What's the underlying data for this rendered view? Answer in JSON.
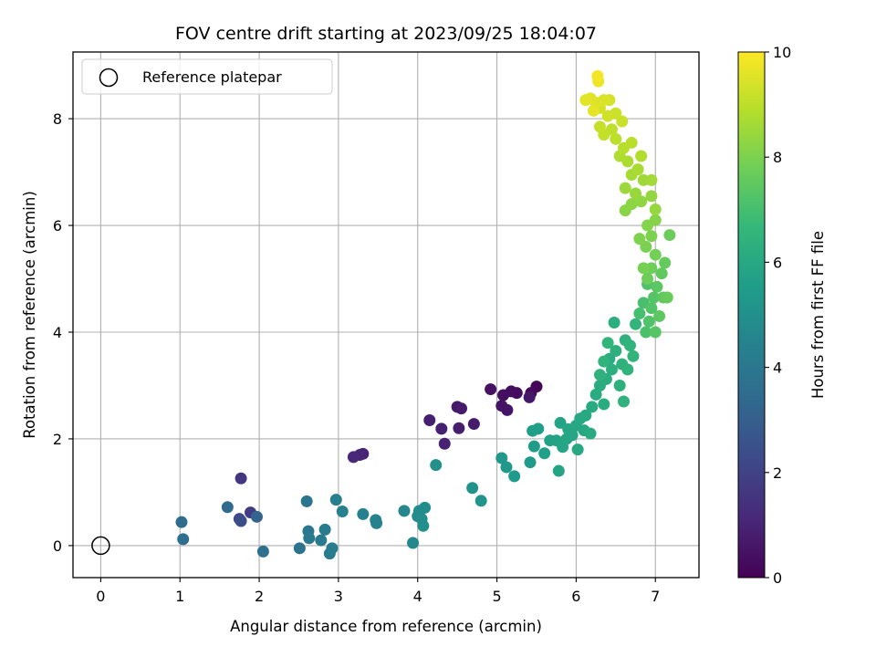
{
  "chart_data": {
    "type": "scatter",
    "title": "FOV centre drift starting at 2023/09/25 18:04:07",
    "xlabel": "Angular distance from reference (arcmin)",
    "ylabel": "Rotation from reference (arcmin)",
    "xlim": [
      -0.35,
      7.55
    ],
    "ylim": [
      -0.6,
      9.25
    ],
    "xticks": [
      0,
      1,
      2,
      3,
      4,
      5,
      6,
      7
    ],
    "yticks": [
      0,
      2,
      4,
      6,
      8
    ],
    "grid": true,
    "legend": {
      "placement": "top-left",
      "entries": [
        "Reference platepar"
      ]
    },
    "reference_point": {
      "x": 0,
      "y": 0
    },
    "colorbar": {
      "label": "Hours from first FF file",
      "range": [
        0,
        10
      ],
      "ticks": [
        0,
        2,
        4,
        6,
        8,
        10
      ],
      "colormap": "viridis"
    },
    "colormap_stops": [
      "#440154",
      "#482878",
      "#3e4989",
      "#31688e",
      "#26828e",
      "#1f9e89",
      "#35b779",
      "#6ece58",
      "#b5de2b",
      "#fde725"
    ],
    "points": [
      {
        "x": 5.5,
        "y": 2.98,
        "h": 0.1
      },
      {
        "x": 5.43,
        "y": 2.86,
        "h": 0.2
      },
      {
        "x": 5.25,
        "y": 2.86,
        "h": 0.3
      },
      {
        "x": 5.18,
        "y": 2.89,
        "h": 0.35
      },
      {
        "x": 5.08,
        "y": 2.82,
        "h": 0.4
      },
      {
        "x": 4.92,
        "y": 2.93,
        "h": 0.45
      },
      {
        "x": 5.06,
        "y": 2.62,
        "h": 0.5
      },
      {
        "x": 5.13,
        "y": 2.54,
        "h": 0.55
      },
      {
        "x": 5.41,
        "y": 2.78,
        "h": 0.6
      },
      {
        "x": 4.5,
        "y": 2.6,
        "h": 0.65
      },
      {
        "x": 4.55,
        "y": 2.57,
        "h": 0.7
      },
      {
        "x": 4.71,
        "y": 2.28,
        "h": 0.75
      },
      {
        "x": 4.52,
        "y": 2.2,
        "h": 0.8
      },
      {
        "x": 4.15,
        "y": 2.35,
        "h": 0.85
      },
      {
        "x": 4.3,
        "y": 2.19,
        "h": 0.9
      },
      {
        "x": 4.34,
        "y": 1.91,
        "h": 0.95
      },
      {
        "x": 3.31,
        "y": 1.72,
        "h": 1.0
      },
      {
        "x": 3.27,
        "y": 1.7,
        "h": 1.05
      },
      {
        "x": 3.19,
        "y": 1.66,
        "h": 1.1
      },
      {
        "x": 1.77,
        "y": 1.26,
        "h": 1.6
      },
      {
        "x": 1.89,
        "y": 0.62,
        "h": 1.8
      },
      {
        "x": 1.75,
        "y": 0.5,
        "h": 2.2
      },
      {
        "x": 1.77,
        "y": 0.46,
        "h": 2.4
      },
      {
        "x": 1.97,
        "y": 0.54,
        "h": 3.2
      },
      {
        "x": 1.6,
        "y": 0.72,
        "h": 3.4
      },
      {
        "x": 1.02,
        "y": 0.44,
        "h": 3.5
      },
      {
        "x": 1.04,
        "y": 0.12,
        "h": 3.6
      },
      {
        "x": 2.05,
        "y": -0.11,
        "h": 3.7
      },
      {
        "x": 2.51,
        "y": -0.05,
        "h": 3.8
      },
      {
        "x": 2.6,
        "y": 0.83,
        "h": 3.9
      },
      {
        "x": 2.62,
        "y": 0.27,
        "h": 4.0
      },
      {
        "x": 2.63,
        "y": 0.14,
        "h": 4.05
      },
      {
        "x": 2.78,
        "y": 0.1,
        "h": 4.1
      },
      {
        "x": 2.83,
        "y": 0.3,
        "h": 4.15
      },
      {
        "x": 2.89,
        "y": -0.15,
        "h": 4.2
      },
      {
        "x": 2.92,
        "y": -0.05,
        "h": 4.25
      },
      {
        "x": 2.97,
        "y": 0.86,
        "h": 4.3
      },
      {
        "x": 3.05,
        "y": 0.64,
        "h": 4.35
      },
      {
        "x": 3.31,
        "y": 0.59,
        "h": 4.4
      },
      {
        "x": 3.47,
        "y": 0.48,
        "h": 4.45
      },
      {
        "x": 3.48,
        "y": 0.42,
        "h": 4.5
      },
      {
        "x": 3.83,
        "y": 0.65,
        "h": 4.6
      },
      {
        "x": 3.94,
        "y": 0.05,
        "h": 4.7
      },
      {
        "x": 4.0,
        "y": 0.55,
        "h": 4.75
      },
      {
        "x": 4.02,
        "y": 0.65,
        "h": 4.8
      },
      {
        "x": 4.05,
        "y": 0.5,
        "h": 4.85
      },
      {
        "x": 4.09,
        "y": 0.71,
        "h": 4.9
      },
      {
        "x": 4.07,
        "y": 0.37,
        "h": 4.95
      },
      {
        "x": 4.23,
        "y": 1.51,
        "h": 5.0
      },
      {
        "x": 4.69,
        "y": 1.08,
        "h": 5.1
      },
      {
        "x": 4.8,
        "y": 0.84,
        "h": 5.2
      },
      {
        "x": 5.06,
        "y": 1.64,
        "h": 5.3
      },
      {
        "x": 5.12,
        "y": 1.47,
        "h": 5.35
      },
      {
        "x": 5.22,
        "y": 1.3,
        "h": 5.4
      },
      {
        "x": 5.42,
        "y": 1.56,
        "h": 5.45
      },
      {
        "x": 5.47,
        "y": 1.86,
        "h": 5.5
      },
      {
        "x": 5.45,
        "y": 2.15,
        "h": 5.55
      },
      {
        "x": 5.52,
        "y": 2.19,
        "h": 5.6
      },
      {
        "x": 5.6,
        "y": 1.73,
        "h": 5.65
      },
      {
        "x": 5.67,
        "y": 1.97,
        "h": 5.7
      },
      {
        "x": 5.75,
        "y": 1.97,
        "h": 5.75
      },
      {
        "x": 5.78,
        "y": 1.4,
        "h": 5.8
      },
      {
        "x": 5.8,
        "y": 2.3,
        "h": 5.82
      },
      {
        "x": 5.83,
        "y": 1.85,
        "h": 5.85
      },
      {
        "x": 5.88,
        "y": 2.0,
        "h": 5.88
      },
      {
        "x": 5.9,
        "y": 2.18,
        "h": 5.9
      },
      {
        "x": 5.95,
        "y": 2.07,
        "h": 5.93
      },
      {
        "x": 6.0,
        "y": 2.25,
        "h": 5.95
      },
      {
        "x": 6.02,
        "y": 1.8,
        "h": 5.98
      },
      {
        "x": 6.05,
        "y": 2.38,
        "h": 6.0
      },
      {
        "x": 6.1,
        "y": 2.16,
        "h": 6.02
      },
      {
        "x": 6.12,
        "y": 2.44,
        "h": 6.05
      },
      {
        "x": 6.18,
        "y": 2.1,
        "h": 6.08
      },
      {
        "x": 6.2,
        "y": 2.6,
        "h": 6.1
      },
      {
        "x": 6.25,
        "y": 2.83,
        "h": 6.12
      },
      {
        "x": 6.3,
        "y": 3.0,
        "h": 6.15
      },
      {
        "x": 6.35,
        "y": 2.65,
        "h": 6.18
      },
      {
        "x": 6.38,
        "y": 3.12,
        "h": 6.2
      },
      {
        "x": 6.42,
        "y": 3.5,
        "h": 6.22
      },
      {
        "x": 6.45,
        "y": 3.3,
        "h": 6.25
      },
      {
        "x": 6.48,
        "y": 4.18,
        "h": 6.28
      },
      {
        "x": 6.5,
        "y": 3.65,
        "h": 6.3
      },
      {
        "x": 6.55,
        "y": 3.0,
        "h": 6.33
      },
      {
        "x": 6.58,
        "y": 3.4,
        "h": 6.36
      },
      {
        "x": 6.6,
        "y": 2.7,
        "h": 6.39
      },
      {
        "x": 6.62,
        "y": 3.85,
        "h": 6.42
      },
      {
        "x": 6.65,
        "y": 3.3,
        "h": 6.45
      },
      {
        "x": 6.68,
        "y": 3.75,
        "h": 6.48
      },
      {
        "x": 6.72,
        "y": 3.55,
        "h": 6.5
      },
      {
        "x": 6.75,
        "y": 4.15,
        "h": 6.55
      },
      {
        "x": 6.3,
        "y": 3.2,
        "h": 6.4
      },
      {
        "x": 6.4,
        "y": 3.8,
        "h": 6.55
      },
      {
        "x": 6.35,
        "y": 3.45,
        "h": 6.5
      },
      {
        "x": 6.8,
        "y": 4.35,
        "h": 7.0
      },
      {
        "x": 6.85,
        "y": 4.55,
        "h": 7.05
      },
      {
        "x": 6.88,
        "y": 4.0,
        "h": 7.1
      },
      {
        "x": 6.9,
        "y": 4.9,
        "h": 7.15
      },
      {
        "x": 6.92,
        "y": 4.2,
        "h": 7.2
      },
      {
        "x": 6.95,
        "y": 4.45,
        "h": 7.25
      },
      {
        "x": 6.98,
        "y": 4.65,
        "h": 7.3
      },
      {
        "x": 7.0,
        "y": 4.0,
        "h": 7.35
      },
      {
        "x": 7.02,
        "y": 4.85,
        "h": 7.4
      },
      {
        "x": 7.05,
        "y": 4.3,
        "h": 7.45
      },
      {
        "x": 7.1,
        "y": 4.65,
        "h": 7.5
      },
      {
        "x": 7.08,
        "y": 5.1,
        "h": 7.55
      },
      {
        "x": 7.12,
        "y": 5.3,
        "h": 7.6
      },
      {
        "x": 7.15,
        "y": 4.65,
        "h": 7.65
      },
      {
        "x": 7.18,
        "y": 5.82,
        "h": 7.7
      },
      {
        "x": 6.9,
        "y": 5.0,
        "h": 7.75
      },
      {
        "x": 6.95,
        "y": 5.2,
        "h": 7.8
      },
      {
        "x": 7.0,
        "y": 5.45,
        "h": 7.85
      },
      {
        "x": 6.85,
        "y": 5.2,
        "h": 7.9
      },
      {
        "x": 6.88,
        "y": 5.6,
        "h": 7.95
      },
      {
        "x": 6.95,
        "y": 5.8,
        "h": 8.0
      },
      {
        "x": 6.8,
        "y": 5.75,
        "h": 8.05
      },
      {
        "x": 6.9,
        "y": 6.0,
        "h": 8.1
      },
      {
        "x": 7.0,
        "y": 6.1,
        "h": 8.15
      },
      {
        "x": 6.62,
        "y": 6.28,
        "h": 8.2
      },
      {
        "x": 6.7,
        "y": 6.4,
        "h": 8.25
      },
      {
        "x": 6.82,
        "y": 6.45,
        "h": 8.3
      },
      {
        "x": 6.95,
        "y": 6.55,
        "h": 8.35
      },
      {
        "x": 7.0,
        "y": 6.3,
        "h": 8.4
      },
      {
        "x": 6.75,
        "y": 6.6,
        "h": 8.45
      },
      {
        "x": 6.62,
        "y": 6.7,
        "h": 8.5
      },
      {
        "x": 6.85,
        "y": 6.85,
        "h": 8.55
      },
      {
        "x": 6.95,
        "y": 6.85,
        "h": 8.6
      },
      {
        "x": 6.7,
        "y": 6.95,
        "h": 8.65
      },
      {
        "x": 6.78,
        "y": 7.05,
        "h": 8.7
      },
      {
        "x": 6.65,
        "y": 7.2,
        "h": 8.75
      },
      {
        "x": 6.55,
        "y": 7.3,
        "h": 8.8
      },
      {
        "x": 6.82,
        "y": 7.3,
        "h": 8.85
      },
      {
        "x": 6.6,
        "y": 7.45,
        "h": 8.9
      },
      {
        "x": 6.7,
        "y": 7.55,
        "h": 8.95
      },
      {
        "x": 6.5,
        "y": 7.62,
        "h": 9.0
      },
      {
        "x": 6.45,
        "y": 7.8,
        "h": 9.05
      },
      {
        "x": 6.35,
        "y": 7.7,
        "h": 9.1
      },
      {
        "x": 6.3,
        "y": 7.85,
        "h": 9.15
      },
      {
        "x": 6.58,
        "y": 7.95,
        "h": 9.2
      },
      {
        "x": 6.5,
        "y": 8.1,
        "h": 9.25
      },
      {
        "x": 6.4,
        "y": 8.05,
        "h": 9.3
      },
      {
        "x": 6.3,
        "y": 8.2,
        "h": 9.35
      },
      {
        "x": 6.42,
        "y": 8.35,
        "h": 9.4
      },
      {
        "x": 6.35,
        "y": 8.35,
        "h": 9.45
      },
      {
        "x": 6.25,
        "y": 8.3,
        "h": 9.5
      },
      {
        "x": 6.18,
        "y": 8.38,
        "h": 9.55
      },
      {
        "x": 6.12,
        "y": 8.35,
        "h": 9.6
      },
      {
        "x": 6.22,
        "y": 8.15,
        "h": 9.65
      },
      {
        "x": 6.28,
        "y": 8.7,
        "h": 9.75
      },
      {
        "x": 6.27,
        "y": 8.8,
        "h": 9.85
      }
    ]
  }
}
